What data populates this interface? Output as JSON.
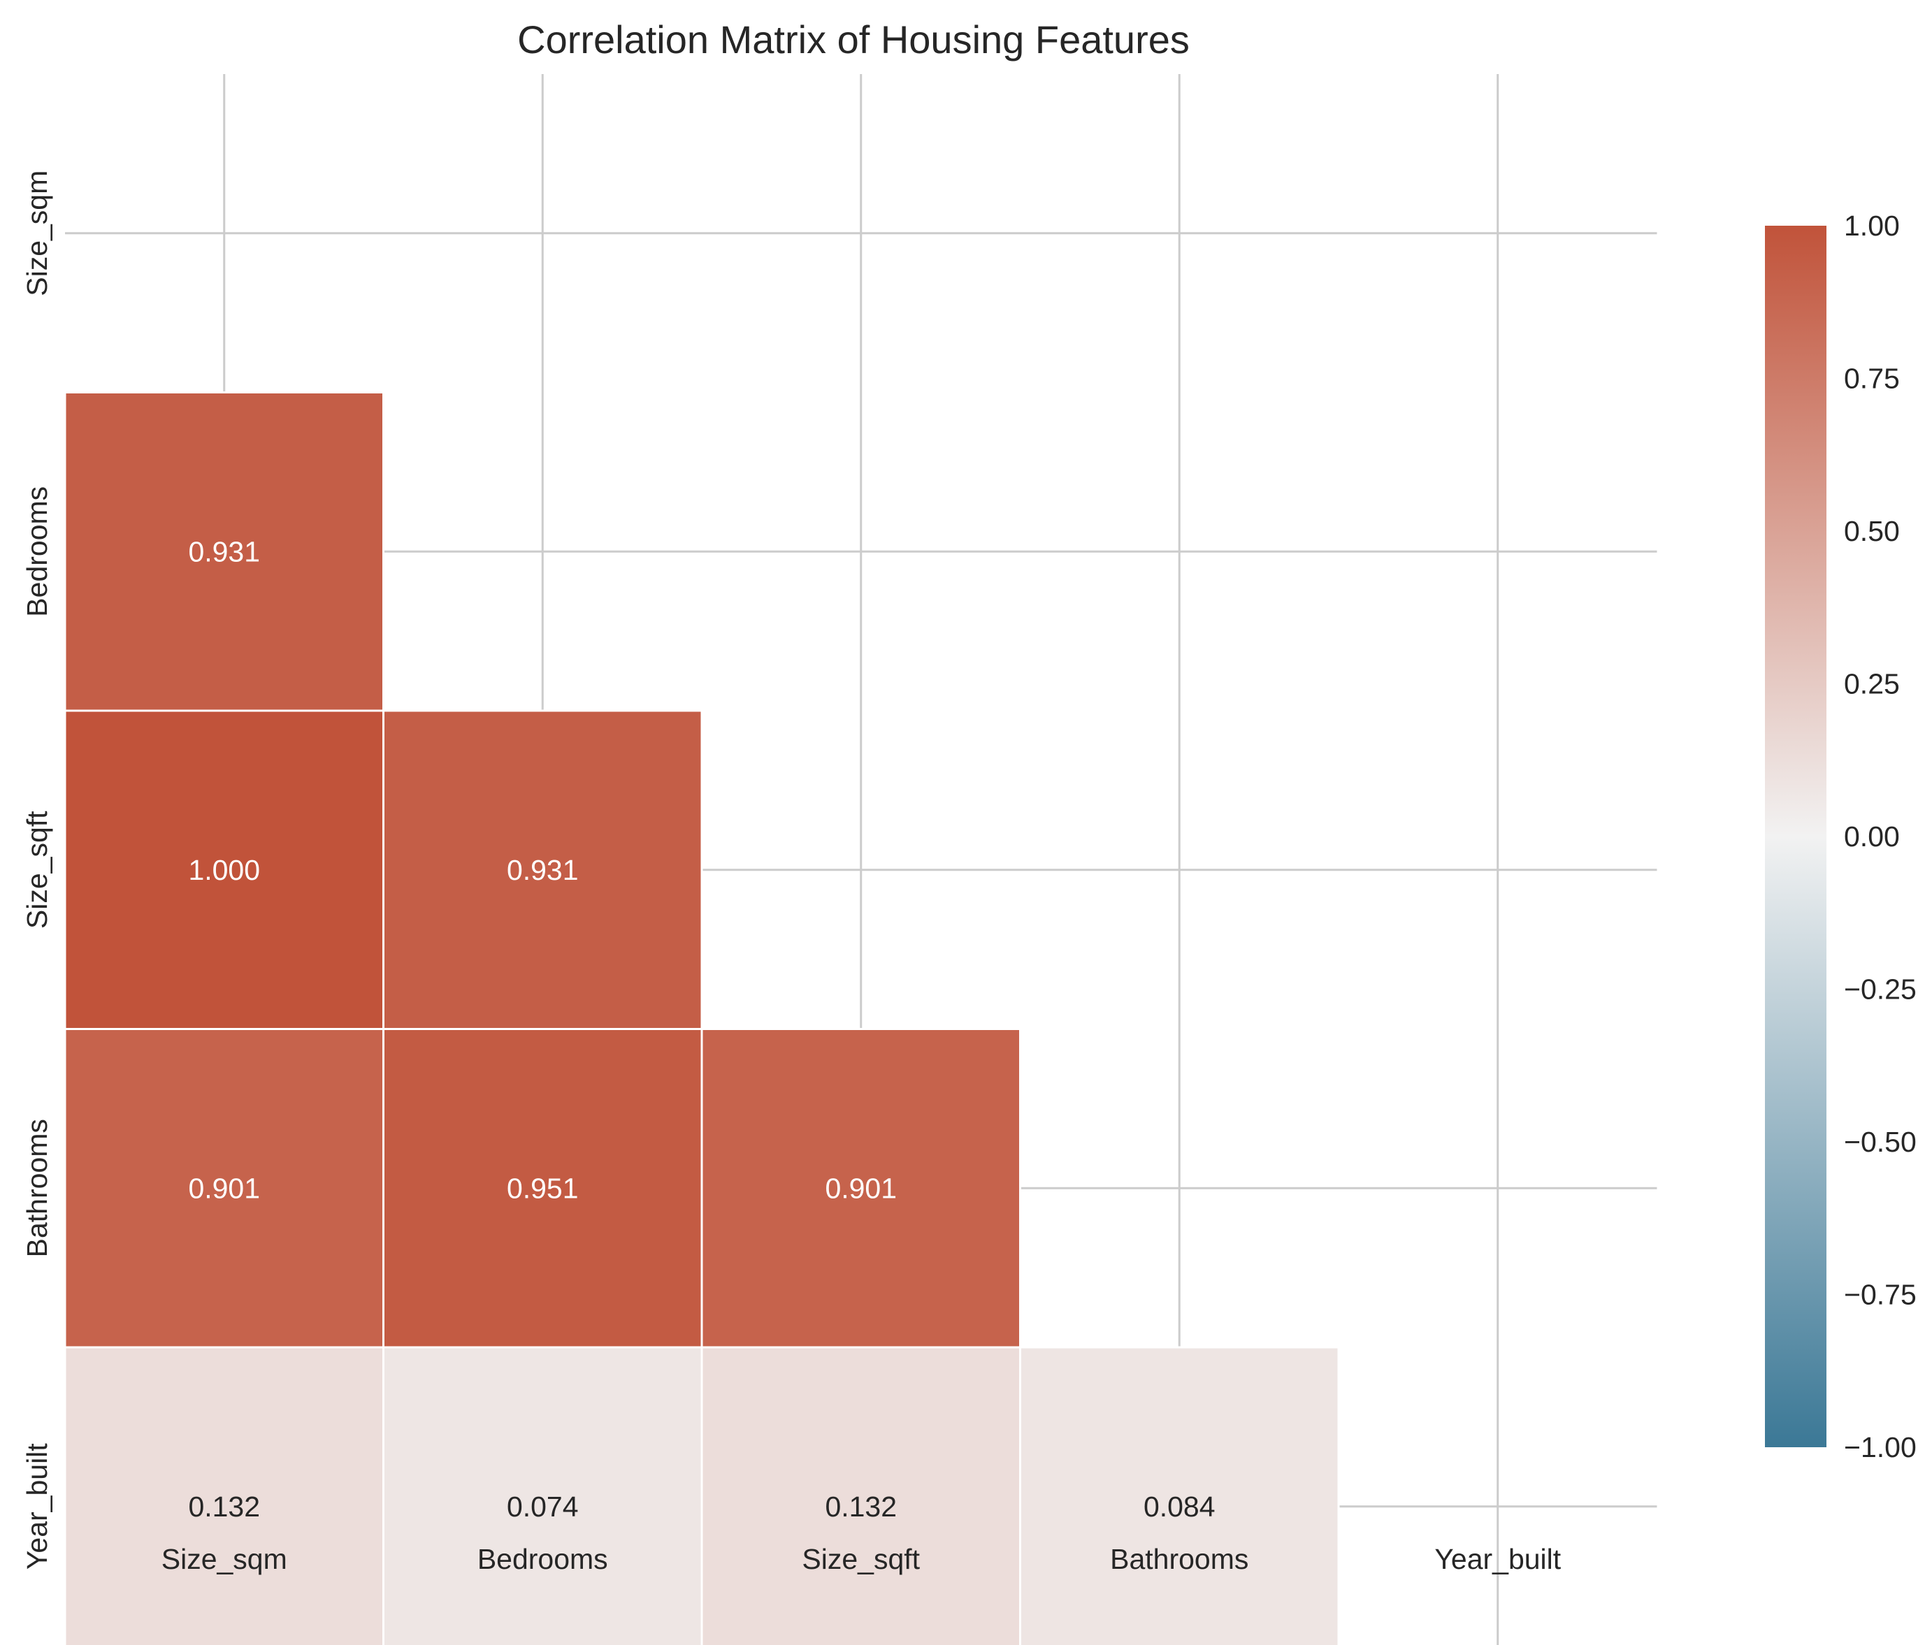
{
  "chart_data": {
    "type": "heatmap",
    "title": "Correlation Matrix of Housing Features",
    "variables": [
      "Size_sqm",
      "Bedrooms",
      "Size_sqft",
      "Bathrooms",
      "Year_built"
    ],
    "matrix": [
      [
        1.0,
        0.931,
        1.0,
        0.901,
        0.132
      ],
      [
        0.931,
        1.0,
        0.931,
        0.951,
        0.074
      ],
      [
        1.0,
        0.931,
        1.0,
        0.901,
        0.132
      ],
      [
        0.901,
        0.951,
        0.901,
        1.0,
        0.084
      ],
      [
        0.132,
        0.074,
        0.132,
        0.084,
        1.0
      ]
    ],
    "mask": "upper-triangle-including-diagonal",
    "visible_cells": [
      {
        "row": "Bedrooms",
        "col": "Size_sqm",
        "value": 0.931,
        "label": "0.931"
      },
      {
        "row": "Size_sqft",
        "col": "Size_sqm",
        "value": 1.0,
        "label": "1.000"
      },
      {
        "row": "Size_sqft",
        "col": "Bedrooms",
        "value": 0.931,
        "label": "0.931"
      },
      {
        "row": "Bathrooms",
        "col": "Size_sqm",
        "value": 0.901,
        "label": "0.901"
      },
      {
        "row": "Bathrooms",
        "col": "Bedrooms",
        "value": 0.951,
        "label": "0.951"
      },
      {
        "row": "Bathrooms",
        "col": "Size_sqft",
        "value": 0.901,
        "label": "0.901"
      },
      {
        "row": "Year_built",
        "col": "Size_sqm",
        "value": 0.132,
        "label": "0.132"
      },
      {
        "row": "Year_built",
        "col": "Bedrooms",
        "value": 0.074,
        "label": "0.074"
      },
      {
        "row": "Year_built",
        "col": "Size_sqft",
        "value": 0.132,
        "label": "0.132"
      },
      {
        "row": "Year_built",
        "col": "Bathrooms",
        "value": 0.084,
        "label": "0.084"
      }
    ],
    "colorbar": {
      "range": [
        -1.0,
        1.0
      ],
      "ticks": [
        1.0,
        0.75,
        0.5,
        0.25,
        0.0,
        -0.25,
        -0.5,
        -0.75,
        -1.0
      ],
      "tick_labels": [
        "1.00",
        "0.75",
        "0.50",
        "0.25",
        "0.00",
        "−0.25",
        "−0.50",
        "−0.75",
        "−1.00"
      ],
      "colormap": "diverging blue-white-red",
      "colors": {
        "low": "#3b7896",
        "mid": "#f2f2f2",
        "high": "#c1533a"
      }
    },
    "grid": true,
    "xlabel": "",
    "ylabel": ""
  }
}
